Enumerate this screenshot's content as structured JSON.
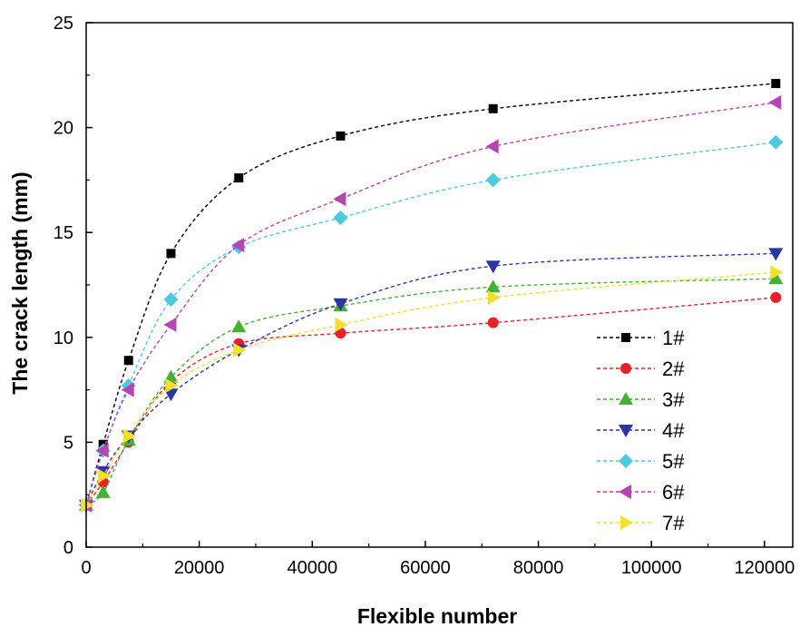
{
  "chart_data": {
    "type": "line",
    "xlabel": "Flexible number",
    "ylabel": "The crack length (mm)",
    "xlim": [
      0,
      125000
    ],
    "ylim": [
      0,
      25
    ],
    "x_ticks": [
      0,
      20000,
      40000,
      60000,
      80000,
      100000,
      120000
    ],
    "y_ticks": [
      0,
      5,
      10,
      15,
      20,
      25
    ],
    "grid": false,
    "legend_position": "bottom-right",
    "x": [
      0,
      3000,
      7500,
      15000,
      27000,
      45000,
      72000,
      122000
    ],
    "series": [
      {
        "name": "1#",
        "marker": "square",
        "color": "#000000",
        "values": [
          2.0,
          4.9,
          8.9,
          14.0,
          17.6,
          19.6,
          20.9,
          22.1
        ]
      },
      {
        "name": "2#",
        "marker": "circle",
        "color": "#e8202a",
        "values": [
          2.0,
          3.1,
          5.0,
          7.9,
          9.7,
          10.2,
          10.7,
          11.9
        ]
      },
      {
        "name": "3#",
        "marker": "triangle-up",
        "color": "#45b035",
        "values": [
          2.0,
          2.6,
          5.1,
          8.1,
          10.5,
          11.5,
          12.4,
          12.8
        ]
      },
      {
        "name": "4#",
        "marker": "triangle-down",
        "color": "#2b35a8",
        "values": [
          2.0,
          3.6,
          5.3,
          7.3,
          9.4,
          11.6,
          13.4,
          14.0
        ]
      },
      {
        "name": "5#",
        "marker": "diamond",
        "color": "#4ec9dd",
        "values": [
          2.0,
          4.6,
          7.7,
          11.8,
          14.3,
          15.7,
          17.5,
          19.3
        ]
      },
      {
        "name": "6#",
        "marker": "triangle-left",
        "color": "#b743b5",
        "values": [
          2.0,
          4.6,
          7.5,
          10.6,
          14.4,
          16.6,
          19.1,
          21.2
        ]
      },
      {
        "name": "7#",
        "marker": "triangle-right",
        "color": "#f2e02d",
        "values": [
          2.0,
          3.4,
          5.3,
          7.7,
          9.4,
          10.6,
          11.9,
          13.1
        ]
      }
    ]
  }
}
